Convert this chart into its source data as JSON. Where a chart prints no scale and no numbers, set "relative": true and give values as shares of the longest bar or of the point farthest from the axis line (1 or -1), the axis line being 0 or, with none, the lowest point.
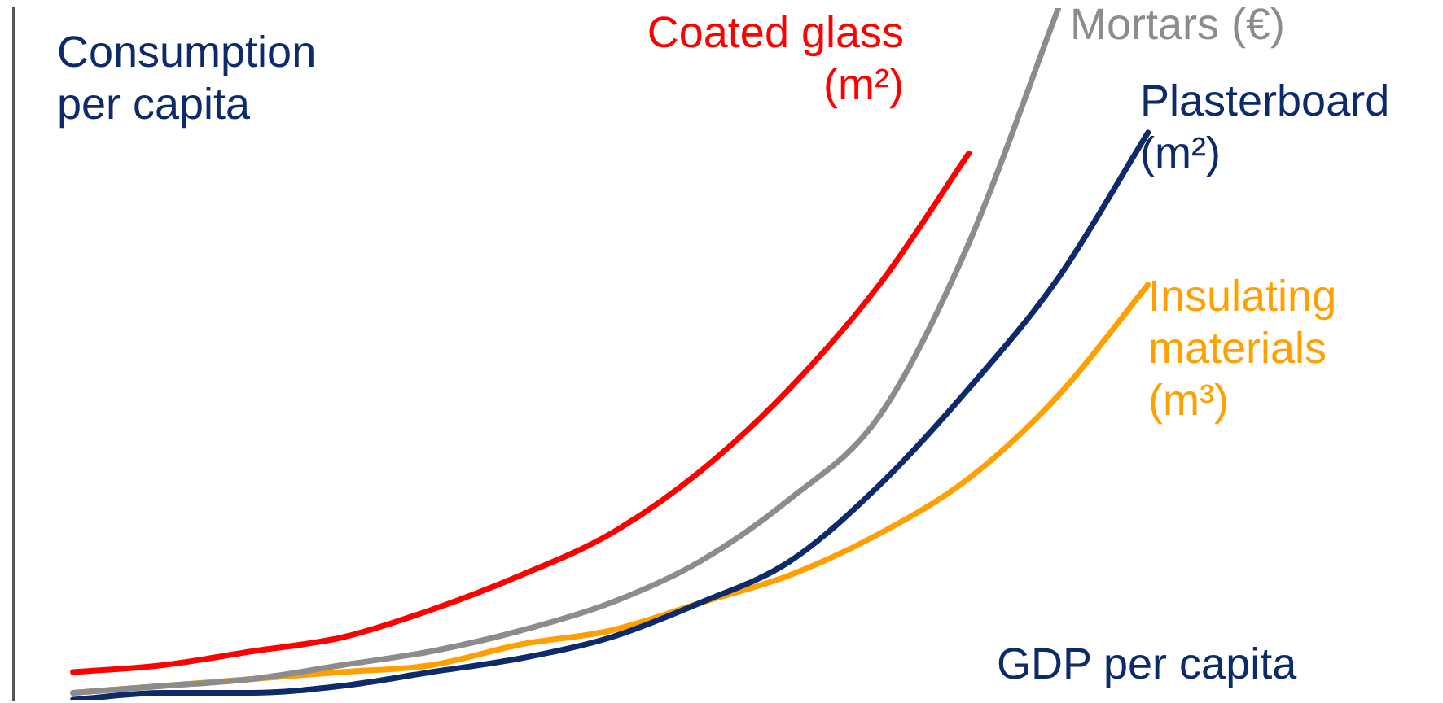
{
  "chart_data": {
    "type": "line",
    "relative": true,
    "ylabel": "Consumption per capita",
    "xlabel": "GDP per capita",
    "legend": false,
    "grid": false,
    "marker": "none",
    "tick_labels": false,
    "categories": [
      null,
      null,
      null,
      null,
      null,
      null,
      null,
      null,
      null,
      null,
      null,
      null,
      null
    ],
    "series": [
      {
        "name": "Coated glass (m²)",
        "color": "#ff0000",
        "values": [
          0.04,
          0.05,
          0.07,
          0.09,
          0.13,
          0.18,
          0.24,
          0.33,
          0.45,
          0.6,
          0.79,
          null,
          null
        ]
      },
      {
        "name": "Mortars (€)",
        "color": "#8c8c8c",
        "values": [
          0.01,
          0.02,
          0.03,
          0.05,
          0.07,
          0.1,
          0.14,
          0.2,
          0.29,
          0.41,
          0.66,
          1.0,
          null
        ]
      },
      {
        "name": "Plasterboard (m²)",
        "color": "#0d2a6b",
        "values": [
          0.0,
          0.01,
          0.01,
          0.02,
          0.04,
          0.06,
          0.09,
          0.14,
          0.2,
          0.31,
          0.45,
          0.61,
          0.82
        ]
      },
      {
        "name": "Insulating materials (m³)",
        "color": "#ffa000",
        "values": [
          0.01,
          0.02,
          0.03,
          0.04,
          0.05,
          0.08,
          0.1,
          0.14,
          0.18,
          0.24,
          0.32,
          0.44,
          0.6
        ]
      }
    ]
  }
}
